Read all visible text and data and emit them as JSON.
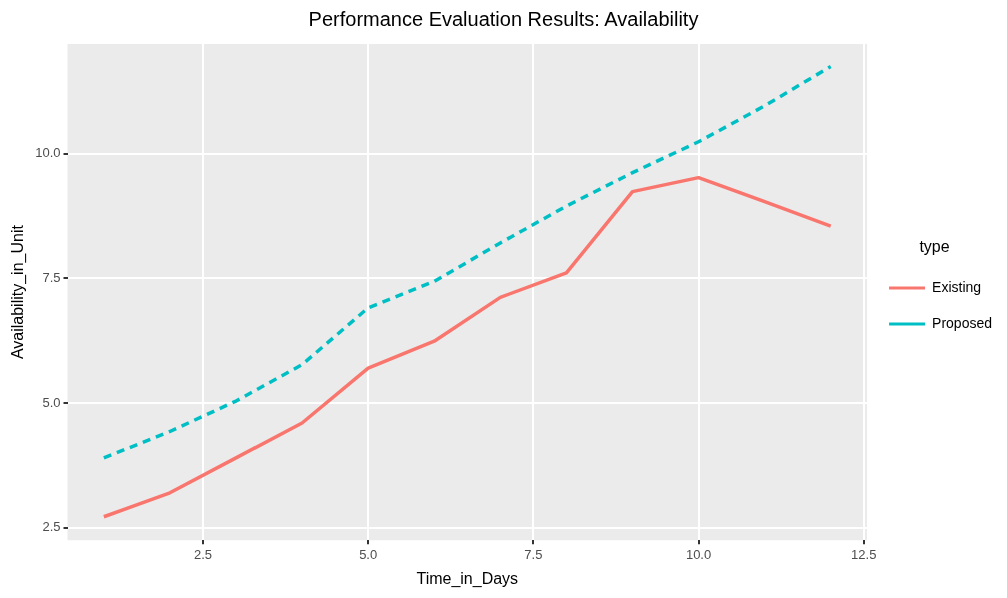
{
  "chart_data": {
    "type": "line",
    "title": "Performance Evaluation Results: Availability",
    "xlabel": "Time_in_Days",
    "ylabel": "Availability_in_Unit",
    "legend_title": "type",
    "legend": "right",
    "grid": true,
    "marker": "none",
    "x": [
      1,
      2,
      3,
      4,
      5,
      6,
      7,
      8,
      9,
      10,
      11,
      12
    ],
    "xlim": [
      0.45,
      12.55
    ],
    "xticks": [
      2.5,
      {
        "value": 5,
        "label": "5.0"
      },
      7.5,
      {
        "value": 10,
        "label": "10.0"
      },
      12.5
    ],
    "ylim": [
      2.25,
      12.2
    ],
    "yticks": [
      2.5,
      {
        "value": 5,
        "label": "5.0"
      },
      7.5,
      {
        "value": 10,
        "label": "10.0"
      }
    ],
    "series": [
      {
        "name": "Existing",
        "color": "#f8766d",
        "line_style": "solid",
        "values": [
          2.72,
          3.2,
          3.9,
          4.6,
          5.7,
          6.24,
          7.12,
          7.61,
          9.24,
          9.52,
          9.04,
          8.55
        ]
      },
      {
        "name": "Proposed",
        "color": "#00bfc4",
        "line_style": "dashed",
        "values": [
          3.9,
          4.43,
          5.04,
          5.77,
          6.91,
          7.44,
          8.21,
          8.95,
          9.62,
          10.24,
          10.96,
          11.75
        ]
      }
    ]
  }
}
